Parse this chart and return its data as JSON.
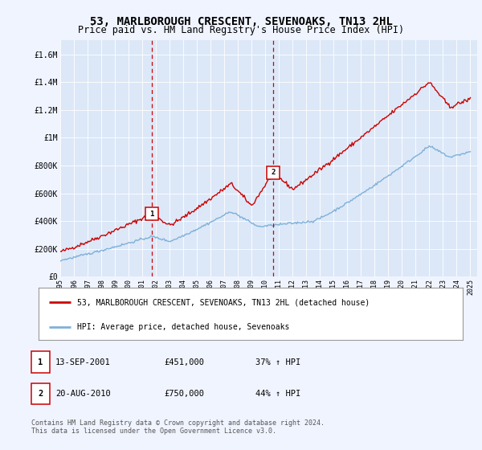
{
  "title": "53, MARLBOROUGH CRESCENT, SEVENOAKS, TN13 2HL",
  "subtitle": "Price paid vs. HM Land Registry's House Price Index (HPI)",
  "title_fontsize": 10,
  "subtitle_fontsize": 8.5,
  "background_color": "#f0f4ff",
  "plot_bg_color": "#dce8f8",
  "ylim": [
    0,
    1700000
  ],
  "xlim": [
    1995.0,
    2025.5
  ],
  "yticks": [
    0,
    200000,
    400000,
    600000,
    800000,
    1000000,
    1200000,
    1400000,
    1600000
  ],
  "ytick_labels": [
    "£0",
    "£200K",
    "£400K",
    "£600K",
    "£800K",
    "£1M",
    "£1.2M",
    "£1.4M",
    "£1.6M"
  ],
  "xticks": [
    1995,
    1996,
    1997,
    1998,
    1999,
    2000,
    2001,
    2002,
    2003,
    2004,
    2005,
    2006,
    2007,
    2008,
    2009,
    2010,
    2011,
    2012,
    2013,
    2014,
    2015,
    2016,
    2017,
    2018,
    2019,
    2020,
    2021,
    2022,
    2023,
    2024,
    2025
  ],
  "red_line_color": "#cc0000",
  "blue_line_color": "#7fb0d8",
  "vline_color": "#cc0000",
  "sale1_x": 2001.7,
  "sale1_y": 451000,
  "sale1_label": "1",
  "sale2_x": 2010.6,
  "sale2_y": 750000,
  "sale2_label": "2",
  "legend_label_red": "53, MARLBOROUGH CRESCENT, SEVENOAKS, TN13 2HL (detached house)",
  "legend_label_blue": "HPI: Average price, detached house, Sevenoaks",
  "transaction1_num": "1",
  "transaction1_date": "13-SEP-2001",
  "transaction1_price": "£451,000",
  "transaction1_hpi": "37% ↑ HPI",
  "transaction2_num": "2",
  "transaction2_date": "20-AUG-2010",
  "transaction2_price": "£750,000",
  "transaction2_hpi": "44% ↑ HPI",
  "footer": "Contains HM Land Registry data © Crown copyright and database right 2024.\nThis data is licensed under the Open Government Licence v3.0."
}
